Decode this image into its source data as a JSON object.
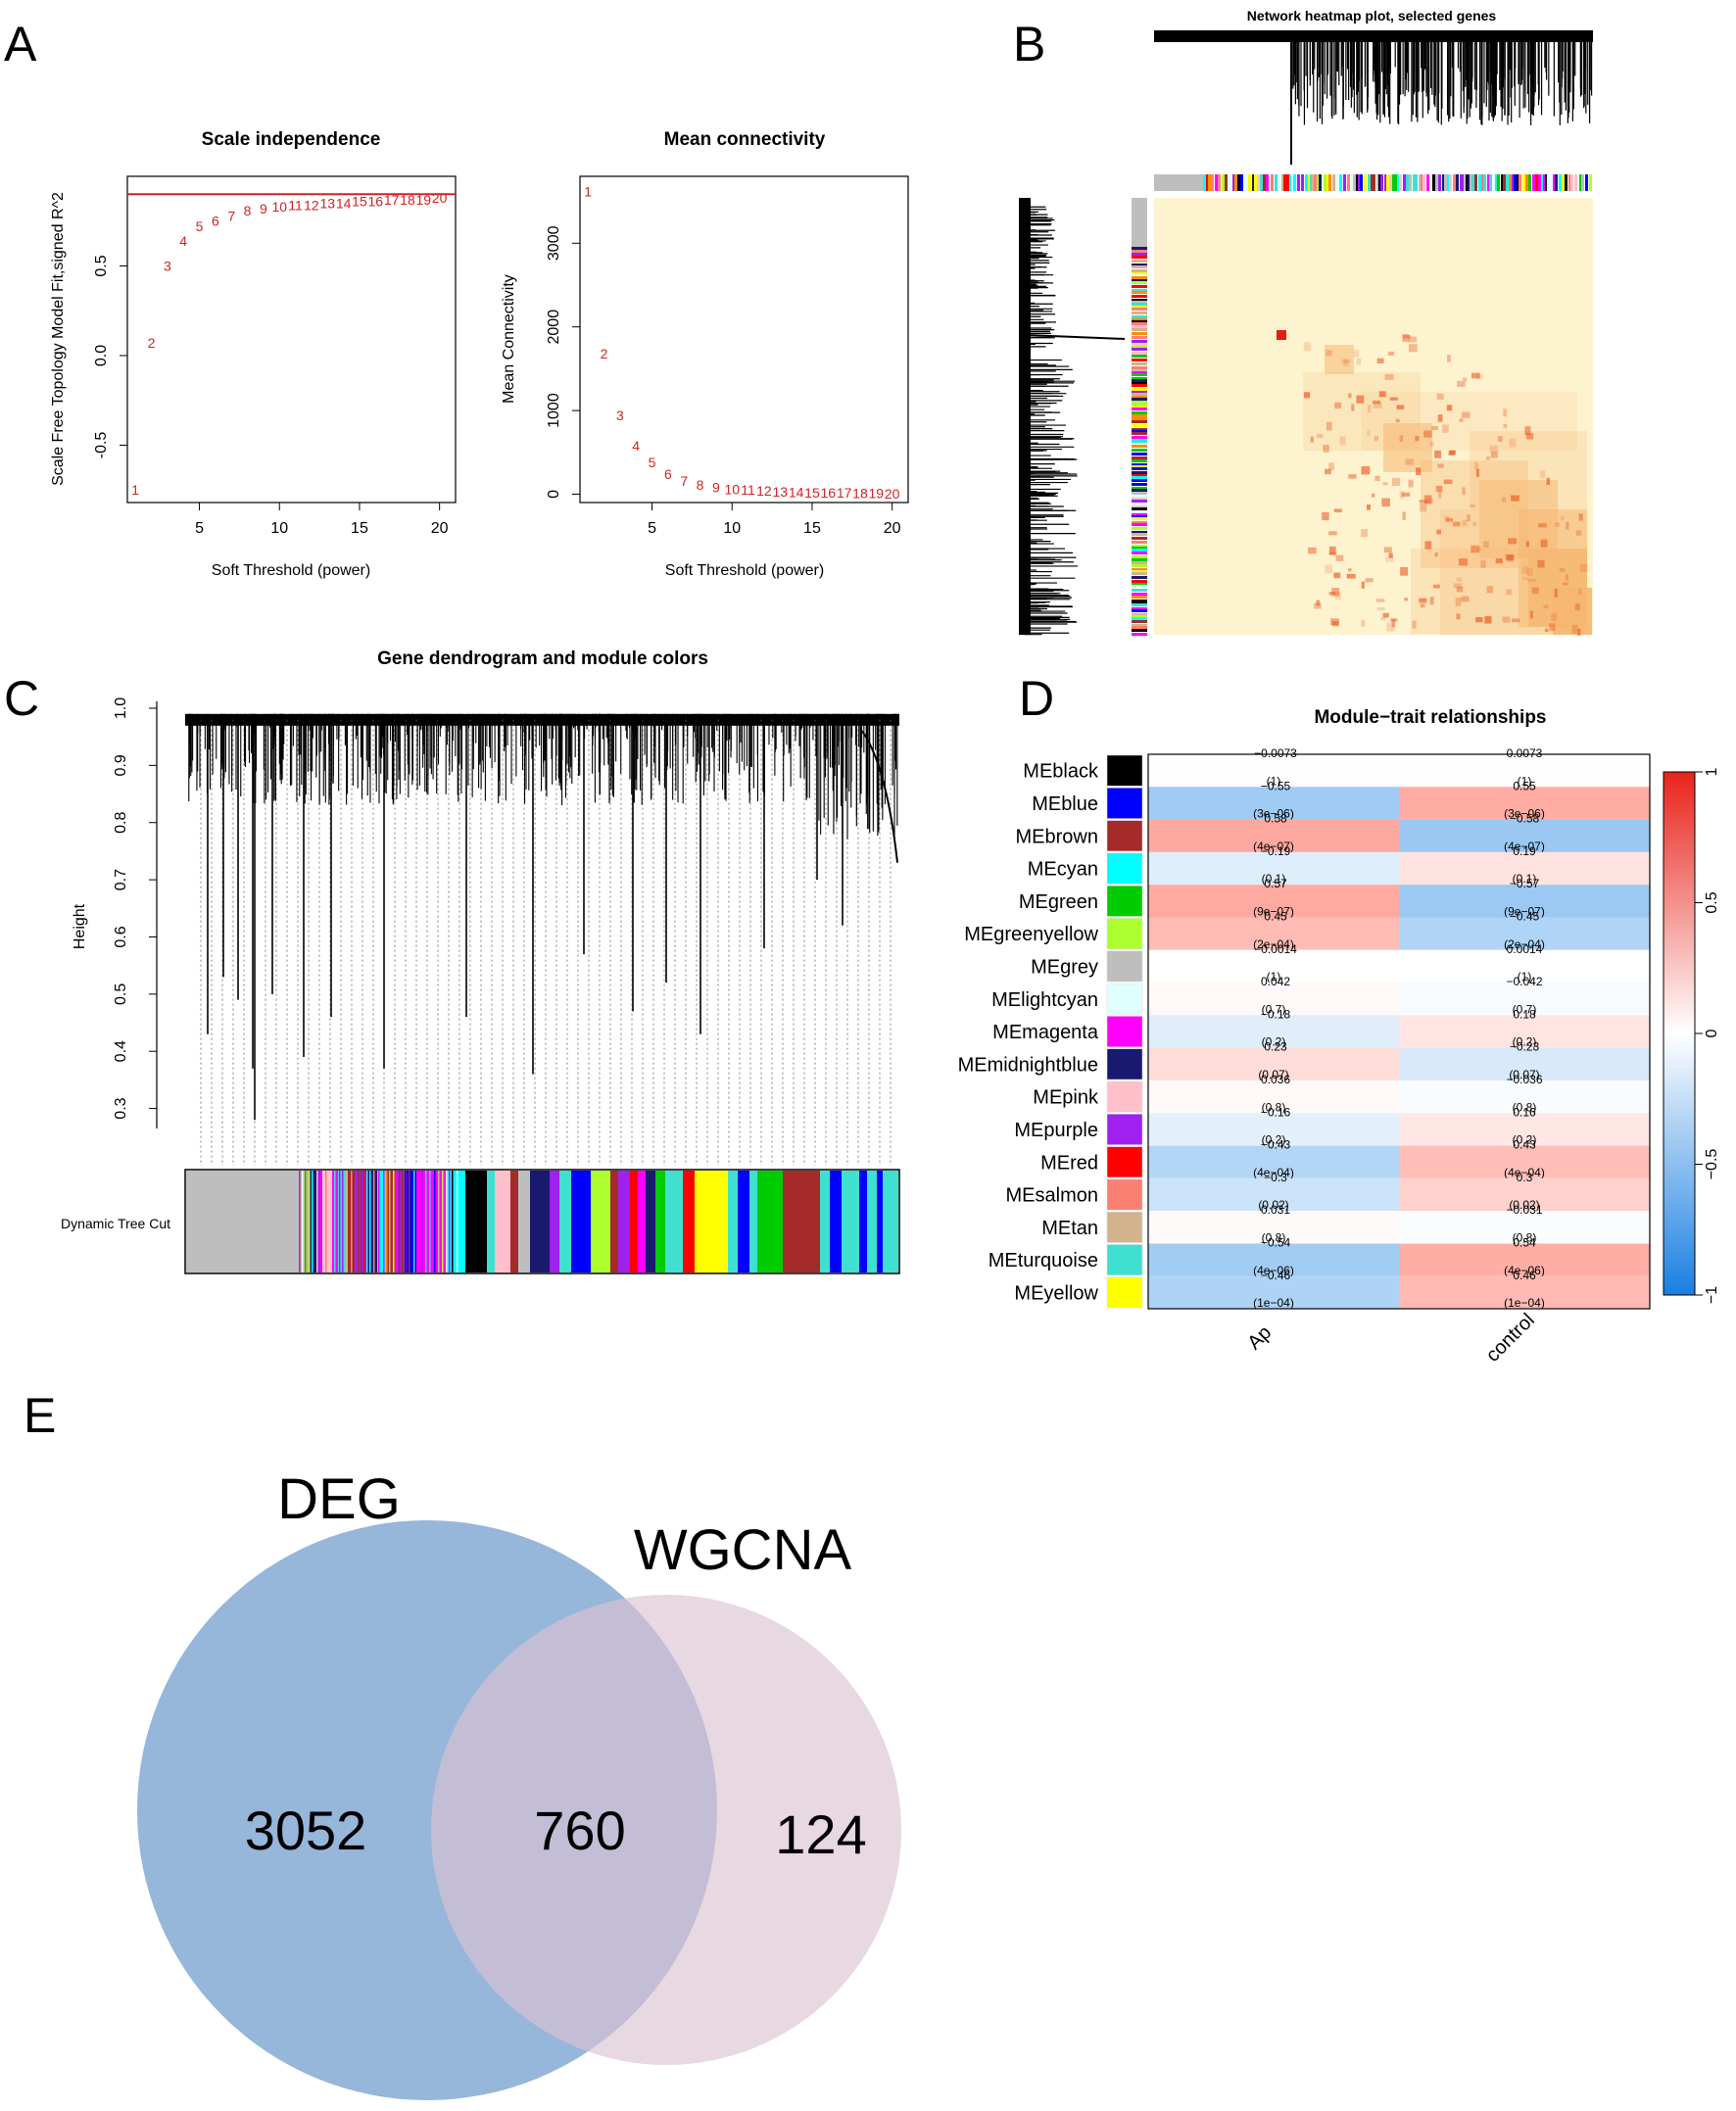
{
  "panel_labels": {
    "a": "A",
    "b": "B",
    "c": "C",
    "d": "D",
    "e": "E"
  },
  "colors": {
    "red_points": "#d32222",
    "black": "#000000",
    "heat_bg": "#fdf3cf",
    "heat_mid": "#f6b772",
    "heat_hot": "#e8541e",
    "neg": "#2b7fd8",
    "pos": "#e8453a",
    "deg_fill": "#7fa6d2",
    "wgcna_fill": "#dcc3d3"
  },
  "chart_data": [
    {
      "id": "scale-independence",
      "type": "scatter",
      "title": "Scale independence",
      "xlabel": "Soft Threshold (power)",
      "ylabel": "Scale Free Topology Model Fit,signed R^2",
      "xlim": [
        0.5,
        21
      ],
      "ylim": [
        -0.82,
        1.0
      ],
      "xticks": [
        "5",
        "10",
        "15",
        "20"
      ],
      "yticks": [
        "-0.5",
        "0.0",
        "0.5"
      ],
      "hline": 0.9,
      "x": [
        1,
        2,
        3,
        4,
        5,
        6,
        7,
        8,
        9,
        10,
        11,
        12,
        13,
        14,
        15,
        16,
        17,
        18,
        19,
        20
      ],
      "y": [
        -0.75,
        0.07,
        0.5,
        0.64,
        0.72,
        0.75,
        0.78,
        0.81,
        0.82,
        0.83,
        0.84,
        0.84,
        0.85,
        0.85,
        0.86,
        0.86,
        0.87,
        0.87,
        0.87,
        0.88
      ],
      "point_labels": [
        "1",
        "2",
        "3",
        "4",
        "5",
        "6",
        "7",
        "8",
        "9",
        "10",
        "11",
        "12",
        "13",
        "14",
        "15",
        "16",
        "17",
        "18",
        "19",
        "20"
      ]
    },
    {
      "id": "mean-connectivity",
      "type": "scatter",
      "title": "Mean connectivity",
      "xlabel": "Soft Threshold (power)",
      "ylabel": "Mean Connectivity",
      "xlim": [
        0.5,
        21
      ],
      "ylim": [
        -100,
        3800
      ],
      "xticks": [
        "5",
        "10",
        "15",
        "20"
      ],
      "yticks": [
        "0",
        "1000",
        "2000",
        "3000"
      ],
      "x": [
        1,
        2,
        3,
        4,
        5,
        6,
        7,
        8,
        9,
        10,
        11,
        12,
        13,
        14,
        15,
        16,
        17,
        18,
        19,
        20
      ],
      "y": [
        3620,
        1680,
        940,
        580,
        380,
        240,
        160,
        110,
        80,
        60,
        50,
        40,
        30,
        25,
        20,
        18,
        15,
        12,
        10,
        8
      ],
      "point_labels": [
        "1",
        "2",
        "3",
        "4",
        "5",
        "6",
        "7",
        "8",
        "9",
        "10",
        "11",
        "12",
        "13",
        "14",
        "15",
        "16",
        "17",
        "18",
        "19",
        "20"
      ]
    },
    {
      "id": "network-heatmap",
      "type": "heatmap",
      "title": "Network heatmap plot, selected genes"
    },
    {
      "id": "gene-dendrogram",
      "type": "dendrogram",
      "title": "Gene dendrogram and module colors",
      "ylabel": "Height",
      "ylim": [
        0.28,
        1.0
      ],
      "yticks": [
        "0.3",
        "0.4",
        "0.5",
        "0.6",
        "0.7",
        "0.8",
        "0.9",
        "1.0"
      ],
      "color_bar_label": "Dynamic Tree Cut"
    },
    {
      "id": "module-trait",
      "type": "heatmap",
      "title": "Module−trait relationships",
      "columns": [
        "Ap",
        "control"
      ],
      "modules": [
        {
          "name": "MEblack",
          "color": "#000000",
          "r": [
            -0.0073,
            0.0073
          ],
          "label": [
            "−0.0073",
            "0.0073"
          ],
          "p": [
            "(1)",
            "(1)"
          ]
        },
        {
          "name": "MEblue",
          "color": "#0000ff",
          "r": [
            -0.55,
            0.55
          ],
          "label": [
            "−0.55",
            "0.55"
          ],
          "p": [
            "(3e−06)",
            "(3e−06)"
          ]
        },
        {
          "name": "MEbrown",
          "color": "#a52a2a",
          "r": [
            0.58,
            -0.58
          ],
          "label": [
            "0.58",
            "−0.58"
          ],
          "p": [
            "(4e−07)",
            "(4e−07)"
          ]
        },
        {
          "name": "MEcyan",
          "color": "#00ffff",
          "r": [
            -0.19,
            0.19
          ],
          "label": [
            "−0.19",
            "0.19"
          ],
          "p": [
            "(0.1)",
            "(0.1)"
          ]
        },
        {
          "name": "MEgreen",
          "color": "#00cc00",
          "r": [
            0.57,
            -0.57
          ],
          "label": [
            "0.57",
            "−0.57"
          ],
          "p": [
            "(9e−07)",
            "(9e−07)"
          ]
        },
        {
          "name": "MEgreenyellow",
          "color": "#adff2f",
          "r": [
            0.45,
            -0.45
          ],
          "label": [
            "0.45",
            "−0.45"
          ],
          "p": [
            "(2e−04)",
            "(2e−04)"
          ]
        },
        {
          "name": "MEgrey",
          "color": "#bebebe",
          "r": [
            -0.0014,
            0.0014
          ],
          "label": [
            "−0.0014",
            "0.0014"
          ],
          "p": [
            "(1)",
            "(1)"
          ]
        },
        {
          "name": "MElightcyan",
          "color": "#e0ffff",
          "r": [
            0.042,
            -0.042
          ],
          "label": [
            "0.042",
            "−0.042"
          ],
          "p": [
            "(0.7)",
            "(0.7)"
          ]
        },
        {
          "name": "MEmagenta",
          "color": "#ff00ff",
          "r": [
            -0.18,
            0.18
          ],
          "label": [
            "−0.18",
            "0.18"
          ],
          "p": [
            "(0.2)",
            "(0.2)"
          ]
        },
        {
          "name": "MEmidnightblue",
          "color": "#191970",
          "r": [
            0.23,
            -0.23
          ],
          "label": [
            "0.23",
            "−0.23"
          ],
          "p": [
            "(0.07)",
            "(0.07)"
          ]
        },
        {
          "name": "MEpink",
          "color": "#ffc0cb",
          "r": [
            0.036,
            -0.036
          ],
          "label": [
            "0.036",
            "−0.036"
          ],
          "p": [
            "(0.8)",
            "(0.8)"
          ]
        },
        {
          "name": "MEpurple",
          "color": "#a020f0",
          "r": [
            -0.16,
            0.16
          ],
          "label": [
            "−0.16",
            "0.16"
          ],
          "p": [
            "(0.2)",
            "(0.2)"
          ]
        },
        {
          "name": "MEred",
          "color": "#ff0000",
          "r": [
            -0.43,
            0.43
          ],
          "label": [
            "−0.43",
            "0.43"
          ],
          "p": [
            "(4e−04)",
            "(4e−04)"
          ]
        },
        {
          "name": "MEsalmon",
          "color": "#fa8072",
          "r": [
            -0.3,
            0.3
          ],
          "label": [
            "−0.3",
            "0.3"
          ],
          "p": [
            "(0.02)",
            "(0.02)"
          ]
        },
        {
          "name": "MEtan",
          "color": "#d2b48c",
          "r": [
            0.031,
            -0.031
          ],
          "label": [
            "0.031",
            "−0.031"
          ],
          "p": [
            "(0.8)",
            "(0.8)"
          ]
        },
        {
          "name": "MEturquoise",
          "color": "#40e0d0",
          "r": [
            -0.54,
            0.54
          ],
          "label": [
            "−0.54",
            "0.54"
          ],
          "p": [
            "(4e−06)",
            "(4e−06)"
          ]
        },
        {
          "name": "MEyellow",
          "color": "#ffff00",
          "r": [
            -0.46,
            0.46
          ],
          "label": [
            "−0.46",
            "0.46"
          ],
          "p": [
            "(1e−04)",
            "(1e−04)"
          ]
        }
      ],
      "scale_ticks": [
        "1",
        "0.5",
        "0",
        "−0.5",
        "−1"
      ],
      "scale_values": [
        1,
        0.5,
        0,
        -0.5,
        -1
      ]
    },
    {
      "id": "venn",
      "type": "venn",
      "sets": [
        "DEG",
        "WGCNA"
      ],
      "values": {
        "DEG_only": "3052",
        "overlap": "760",
        "WGCNA_only": "124"
      }
    }
  ]
}
